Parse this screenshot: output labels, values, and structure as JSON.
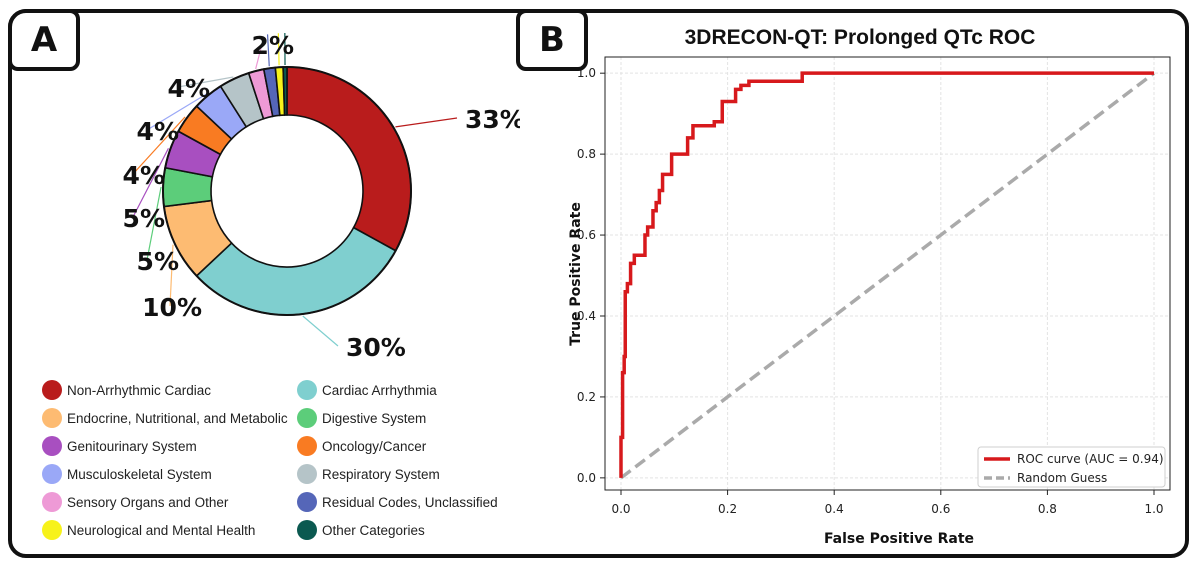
{
  "panel_a": {
    "tag": "A"
  },
  "panel_b": {
    "tag": "B"
  },
  "colors": {
    "roc": "#d7191c",
    "random": "#aaaaaa"
  },
  "chart_data": [
    {
      "type": "pie",
      "donut": true,
      "title": "",
      "slices": [
        {
          "name": "Non-Arrhythmic Cardiac",
          "value": 33,
          "color": "#b91c1c",
          "label": "33%"
        },
        {
          "name": "Cardiac Arrhythmia",
          "value": 30,
          "color": "#7fcfcf",
          "label": "30%"
        },
        {
          "name": "Endocrine, Nutritional, and Metabolic",
          "value": 10,
          "color": "#fdbb72",
          "label": "10%"
        },
        {
          "name": "Digestive System",
          "value": 5,
          "color": "#5ccd7a",
          "label": "5%"
        },
        {
          "name": "Genitourinary System",
          "value": 5,
          "color": "#a84fc0",
          "label": "5%"
        },
        {
          "name": "Oncology/Cancer",
          "value": 4,
          "color": "#f97b22",
          "label": "4%"
        },
        {
          "name": "Musculoskeletal System",
          "value": 4,
          "color": "#9aa8f7",
          "label": "4%"
        },
        {
          "name": "Respiratory System",
          "value": 4,
          "color": "#b5c4c8",
          "label": "4%"
        },
        {
          "name": "Sensory Organs and Other",
          "value": 2,
          "color": "#ee9ad6",
          "label": "2%"
        },
        {
          "name": "Residual Codes, Unclassified",
          "value": 1.5,
          "color": "#5566b8",
          "label": ""
        },
        {
          "name": "Neurological and Mental Health",
          "value": 1,
          "color": "#f7f21a",
          "label": ""
        },
        {
          "name": "Other Categories",
          "value": 0.5,
          "color": "#0b5950",
          "label": ""
        }
      ],
      "legend": [
        "Non-Arrhythmic Cardiac",
        "Cardiac Arrhythmia",
        "Endocrine, Nutritional, and Metabolic",
        "Digestive System",
        "Genitourinary System",
        "Oncology/Cancer",
        "Musculoskeletal System",
        "Respiratory System",
        "Sensory Organs and Other",
        "Residual Codes, Unclassified",
        "Neurological and Mental Health",
        "Other Categories"
      ]
    },
    {
      "type": "line",
      "title": "3DRECON-QT: Prolonged QTc ROC",
      "xlabel": "False Positive Rate",
      "ylabel": "True Positive Rate",
      "xlim": [
        -0.03,
        1.03
      ],
      "ylim": [
        -0.03,
        1.04
      ],
      "xticks": [
        "0.0",
        "0.2",
        "0.4",
        "0.6",
        "0.8",
        "1.0"
      ],
      "yticks": [
        "0.0",
        "0.2",
        "0.4",
        "0.6",
        "0.8",
        "1.0"
      ],
      "grid": true,
      "legend_position": "lower-right",
      "series": [
        {
          "name": "ROC curve (AUC = 0.94)",
          "style": "solid",
          "x": [
            0,
            0,
            0.003,
            0.003,
            0.006,
            0.006,
            0.008,
            0.008,
            0.012,
            0.012,
            0.018,
            0.018,
            0.025,
            0.025,
            0.035,
            0.035,
            0.045,
            0.045,
            0.05,
            0.05,
            0.06,
            0.06,
            0.066,
            0.066,
            0.072,
            0.072,
            0.078,
            0.078,
            0.085,
            0.085,
            0.095,
            0.095,
            0.1,
            0.1,
            0.125,
            0.125,
            0.135,
            0.135,
            0.145,
            0.145,
            0.155,
            0.155,
            0.175,
            0.175,
            0.19,
            0.19,
            0.2,
            0.2,
            0.215,
            0.215,
            0.225,
            0.225,
            0.24,
            0.24,
            0.255,
            0.255,
            0.34,
            0.34,
            1.0
          ],
          "y": [
            0,
            0.1,
            0.1,
            0.26,
            0.26,
            0.3,
            0.3,
            0.46,
            0.46,
            0.48,
            0.48,
            0.53,
            0.53,
            0.55,
            0.55,
            0.55,
            0.55,
            0.6,
            0.6,
            0.62,
            0.62,
            0.66,
            0.66,
            0.68,
            0.68,
            0.71,
            0.71,
            0.75,
            0.75,
            0.75,
            0.75,
            0.8,
            0.8,
            0.8,
            0.8,
            0.84,
            0.84,
            0.87,
            0.87,
            0.87,
            0.87,
            0.87,
            0.87,
            0.88,
            0.88,
            0.93,
            0.93,
            0.93,
            0.93,
            0.96,
            0.96,
            0.97,
            0.97,
            0.98,
            0.98,
            0.98,
            0.98,
            1.0,
            1.0
          ]
        },
        {
          "name": "Random Guess",
          "style": "dashed",
          "x": [
            0,
            1
          ],
          "y": [
            0,
            1
          ]
        }
      ]
    }
  ]
}
